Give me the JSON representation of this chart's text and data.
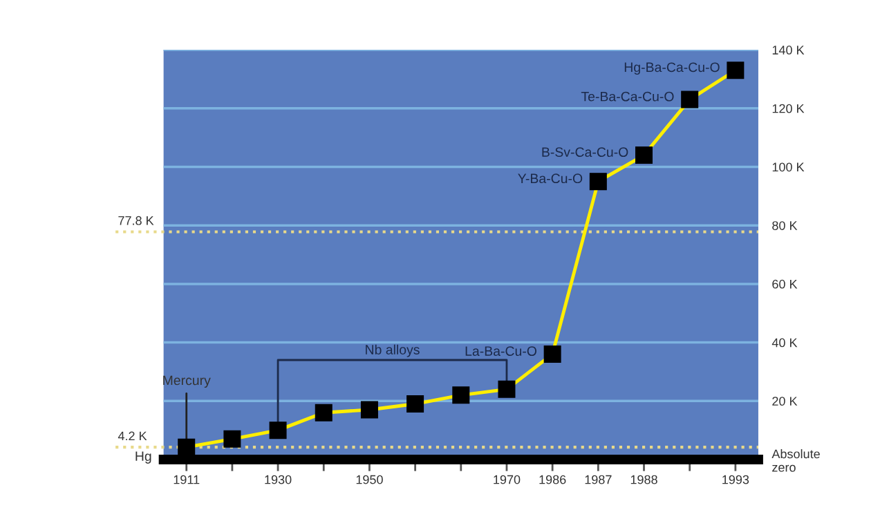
{
  "chart_data": {
    "type": "line",
    "categories": [
      "1911",
      null,
      "1930",
      null,
      "1950",
      null,
      null,
      "1970",
      "1986",
      "1987",
      "1988",
      null,
      "1993"
    ],
    "series": [
      {
        "color": "#ffee00",
        "values": [
          4.2,
          7,
          10,
          16,
          17,
          19,
          22,
          24,
          36,
          95,
          104,
          123,
          133
        ],
        "value_labels": [
          null,
          null,
          null,
          null,
          null,
          null,
          null,
          null,
          "La-Ba-Cu-O",
          "Y-Ba-Cu-O",
          "B-Sv-Ca-Cu-O",
          "Te-Ba-Ca-Cu-O",
          "Hg-Ba-Ca-Cu-O"
        ]
      }
    ],
    "marker": "square",
    "ylim": [
      0,
      140
    ],
    "yticks": [
      {
        "value": 0,
        "label": "Absolute\nzero"
      },
      {
        "value": 20,
        "label": "20 K"
      },
      {
        "value": 40,
        "label": "40 K"
      },
      {
        "value": 60,
        "label": "60 K"
      },
      {
        "value": 80,
        "label": "80 K"
      },
      {
        "value": 100,
        "label": "100 K"
      },
      {
        "value": 120,
        "label": "120 K"
      },
      {
        "value": 140,
        "label": "140 K"
      }
    ],
    "grid": "y",
    "ref_lines": [
      {
        "axis": "y",
        "value": 77.8,
        "label": "77.8 K",
        "color": "#e8d98a",
        "line_style": "dotted"
      },
      {
        "axis": "y",
        "value": 4.2,
        "label": "4.2 K",
        "color": "#e8d98a",
        "line_style": "dotted"
      }
    ],
    "annotations": [
      {
        "text": "Mercury",
        "x": "1911",
        "y": 4.2
      },
      {
        "text": "Hg",
        "x": "1911",
        "y": 4.2
      },
      "Nb alloys"
    ]
  }
}
